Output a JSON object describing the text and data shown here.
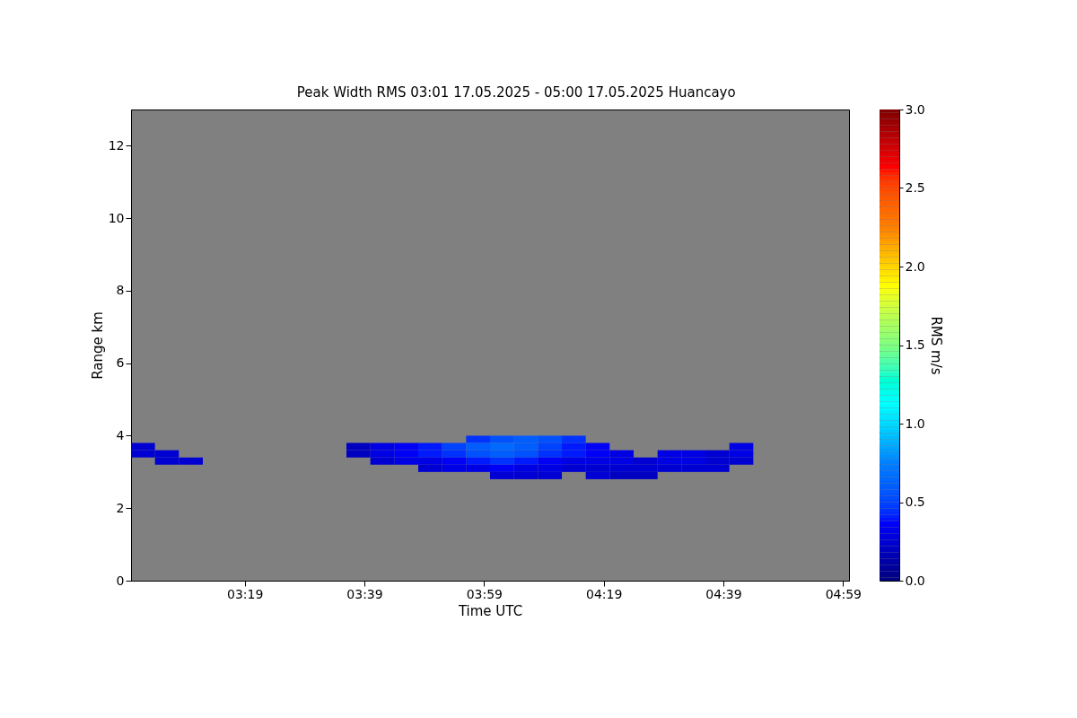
{
  "chart_data": {
    "type": "heatmap",
    "title": "Peak Width RMS   03:01 17.05.2025 - 05:00 17.05.2025 Huancayo",
    "xlabel": "Time UTC",
    "ylabel": "Range km",
    "clabel": "RMS m/s",
    "x": [
      "2025-05-17T03:02",
      "2025-05-17T03:06",
      "2025-05-17T03:10",
      "2025-05-17T03:14",
      "2025-05-17T03:18",
      "2025-05-17T03:22",
      "2025-05-17T03:26",
      "2025-05-17T03:30",
      "2025-05-17T03:34",
      "2025-05-17T03:38",
      "2025-05-17T03:42",
      "2025-05-17T03:46",
      "2025-05-17T03:50",
      "2025-05-17T03:54",
      "2025-05-17T03:58",
      "2025-05-17T04:02",
      "2025-05-17T04:06",
      "2025-05-17T04:10",
      "2025-05-17T04:14",
      "2025-05-17T04:18",
      "2025-05-17T04:22",
      "2025-05-17T04:26",
      "2025-05-17T04:30",
      "2025-05-17T04:34",
      "2025-05-17T04:38",
      "2025-05-17T04:42",
      "2025-05-17T04:46",
      "2025-05-17T04:50",
      "2025-05-17T04:54",
      "2025-05-17T04:58"
    ],
    "y": [
      3.9,
      3.7,
      3.5,
      3.3,
      3.1,
      2.9
    ],
    "cells": [
      [
        null,
        null,
        null,
        null,
        null,
        null,
        null,
        null,
        null,
        null,
        null,
        null,
        null,
        null,
        0.45,
        0.55,
        0.6,
        0.55,
        0.45,
        null,
        null,
        null,
        null,
        null,
        null,
        null,
        null,
        null,
        null,
        null
      ],
      [
        0.25,
        null,
        null,
        null,
        null,
        null,
        null,
        null,
        null,
        0.2,
        0.3,
        0.35,
        0.4,
        0.5,
        0.6,
        0.65,
        0.6,
        0.5,
        0.4,
        0.35,
        null,
        null,
        null,
        null,
        null,
        0.3,
        null,
        null,
        null,
        null
      ],
      [
        0.25,
        0.25,
        null,
        null,
        null,
        null,
        null,
        null,
        null,
        0.2,
        0.3,
        0.35,
        0.4,
        0.45,
        0.55,
        0.6,
        0.55,
        0.45,
        0.4,
        0.35,
        0.3,
        null,
        0.3,
        0.3,
        0.25,
        0.3,
        null,
        null,
        null,
        null
      ],
      [
        null,
        0.25,
        0.25,
        null,
        null,
        null,
        null,
        null,
        null,
        null,
        0.25,
        0.3,
        0.3,
        0.35,
        0.4,
        0.45,
        0.4,
        0.35,
        0.3,
        0.3,
        0.3,
        0.25,
        0.3,
        0.3,
        0.25,
        0.25,
        null,
        null,
        null,
        null
      ],
      [
        null,
        null,
        null,
        null,
        null,
        null,
        null,
        null,
        null,
        null,
        null,
        null,
        0.25,
        0.3,
        0.3,
        0.35,
        0.3,
        0.3,
        0.25,
        0.25,
        0.25,
        0.25,
        0.25,
        0.25,
        0.25,
        null,
        null,
        null,
        null,
        null
      ],
      [
        null,
        null,
        null,
        null,
        null,
        null,
        null,
        null,
        null,
        null,
        null,
        null,
        null,
        null,
        null,
        0.25,
        0.25,
        0.25,
        null,
        0.25,
        0.2,
        0.2,
        null,
        null,
        null,
        null,
        null,
        null,
        null,
        null
      ]
    ],
    "xlim": [
      "2025-05-17T03:00",
      "2025-05-17T05:00"
    ],
    "xticks": [
      {
        "value": "2025-05-17T03:19",
        "label": "03:19"
      },
      {
        "value": "2025-05-17T03:39",
        "label": "03:39"
      },
      {
        "value": "2025-05-17T03:59",
        "label": "03:59"
      },
      {
        "value": "2025-05-17T04:19",
        "label": "04:19"
      },
      {
        "value": "2025-05-17T04:39",
        "label": "04:39"
      },
      {
        "value": "2025-05-17T04:59",
        "label": "04:59"
      }
    ],
    "ylim": [
      0,
      13
    ],
    "yticks": [
      0,
      2,
      4,
      6,
      8,
      10,
      12
    ],
    "clim": [
      0,
      3
    ],
    "cticks": [
      {
        "value": 0,
        "label": "0.0"
      },
      {
        "value": 0.5,
        "label": "0.5"
      },
      {
        "value": 1,
        "label": "1.0"
      },
      {
        "value": 1.5,
        "label": "1.5"
      },
      {
        "value": 2,
        "label": "2.0"
      },
      {
        "value": 2.5,
        "label": "2.5"
      },
      {
        "value": 3,
        "label": "3.0"
      }
    ],
    "grid": false
  }
}
